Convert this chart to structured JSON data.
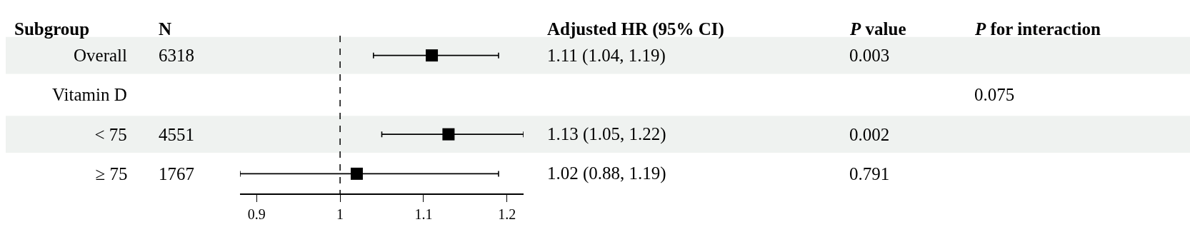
{
  "chart_data": {
    "type": "scatter",
    "categories": [
      "Overall",
      "Vitamin D",
      "  < 75",
      "  ≥ 75"
    ],
    "values": [
      1.11,
      null,
      1.13,
      1.02
    ],
    "errors": [
      [
        1.04,
        1.19
      ],
      null,
      [
        1.05,
        1.22
      ],
      [
        0.88,
        1.19
      ]
    ],
    "value_labels": [
      "1.11 (1.04, 1.19)",
      null,
      "1.13 (1.05, 1.22)",
      "1.02 (0.88, 1.19)"
    ],
    "color": "#000000",
    "marker": "square",
    "orientation": "horizontal",
    "xlim": [
      0.88,
      1.22
    ],
    "xticks": [
      0.9,
      1,
      1.1,
      1.2
    ],
    "ref_lines": [
      {
        "axis": "x",
        "value": 1,
        "line_style": "dashed",
        "color": "#000000"
      }
    ],
    "annotations": [
      "Subgroup",
      "N",
      "Adjusted HR (95% CI)",
      "P value",
      "P for interaction",
      "6318",
      "4551",
      "1767",
      "0.003",
      "0.002",
      "0.791",
      "0.075"
    ],
    "grid": false,
    "legend": false
  }
}
